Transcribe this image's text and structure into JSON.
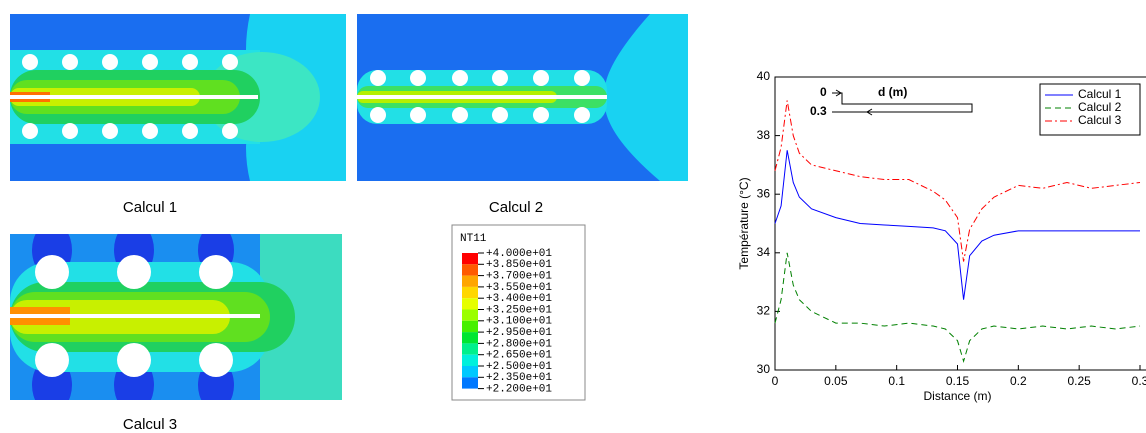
{
  "captions": [
    "Calcul 1",
    "Calcul 2",
    "Calcul 3"
  ],
  "contour_legend": {
    "title": "NT11",
    "labels": [
      "+4.000e+01",
      "+3.850e+01",
      "+3.700e+01",
      "+3.550e+01",
      "+3.400e+01",
      "+3.250e+01",
      "+3.100e+01",
      "+2.950e+01",
      "+2.800e+01",
      "+2.650e+01",
      "+2.500e+01",
      "+2.350e+01",
      "+2.200e+01"
    ],
    "colors": [
      "#ff0000",
      "#ff5a00",
      "#ffa500",
      "#ffd700",
      "#e6ff00",
      "#9bff00",
      "#46f000",
      "#00e632",
      "#00f08c",
      "#00f0dc",
      "#00c8ff",
      "#0078ff",
      "#0000ff"
    ]
  },
  "chart_data": {
    "type": "line",
    "x_label": "Distance (m)",
    "y_label": "Température (°C)",
    "annotations": [
      "0",
      "d (m)",
      "0.3"
    ],
    "x": [
      0,
      0.005,
      0.01,
      0.015,
      0.02,
      0.03,
      0.05,
      0.07,
      0.09,
      0.11,
      0.13,
      0.14,
      0.15,
      0.155,
      0.16,
      0.17,
      0.18,
      0.2,
      0.22,
      0.24,
      0.26,
      0.28,
      0.3
    ],
    "series": [
      {
        "name": "Calcul 1",
        "color": "#0000ff",
        "line_style": "solid",
        "values": [
          35.0,
          35.6,
          37.5,
          36.4,
          35.9,
          35.5,
          35.2,
          35.0,
          34.95,
          34.9,
          34.85,
          34.75,
          34.3,
          32.4,
          33.9,
          34.4,
          34.6,
          34.75,
          34.75,
          34.75,
          34.75,
          34.75,
          34.75
        ]
      },
      {
        "name": "Calcul 2",
        "color": "#008000",
        "line_style": "dashed",
        "values": [
          31.6,
          32.4,
          34.0,
          32.9,
          32.4,
          32.0,
          31.6,
          31.6,
          31.5,
          31.6,
          31.5,
          31.4,
          31.0,
          30.3,
          31.0,
          31.4,
          31.5,
          31.4,
          31.5,
          31.4,
          31.5,
          31.4,
          31.5
        ]
      },
      {
        "name": "Calcul 3",
        "color": "#ff0000",
        "line_style": "dashdot",
        "values": [
          36.8,
          37.6,
          39.2,
          38.0,
          37.4,
          37.0,
          36.8,
          36.6,
          36.5,
          36.5,
          36.1,
          35.8,
          35.2,
          33.7,
          34.8,
          35.5,
          35.9,
          36.3,
          36.2,
          36.4,
          36.2,
          36.3,
          36.4
        ]
      }
    ],
    "xlim": [
      0,
      0.3
    ],
    "xticks": [
      0,
      0.05,
      0.1,
      0.15,
      0.2,
      0.25,
      0.3
    ],
    "ylim": [
      30,
      40
    ],
    "yticks": [
      30,
      32,
      34,
      36,
      38,
      40
    ],
    "legend": "upper right"
  }
}
